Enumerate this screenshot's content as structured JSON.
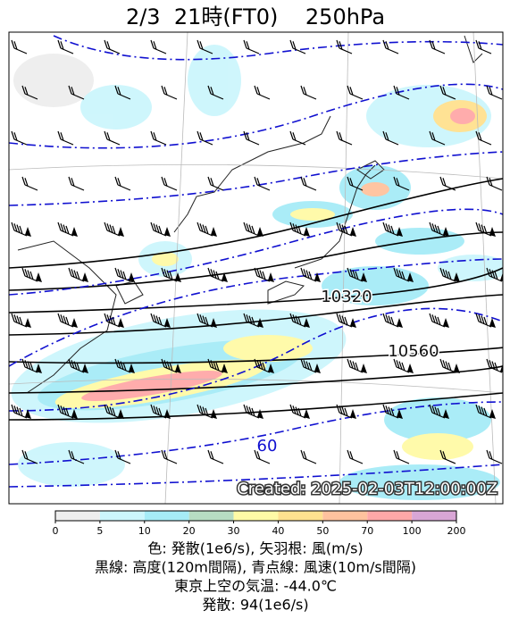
{
  "title": "2/3  21時(FT0)    250hPa",
  "contour_labels": [
    "10320",
    "10560",
    "60"
  ],
  "created": "Created: 2025-02-03T12:00:00Z",
  "colorbar": {
    "ticks": [
      0,
      5,
      10,
      20,
      30,
      40,
      50,
      70,
      100,
      200
    ],
    "colors": [
      "#eeeeee",
      "#ccf6fc",
      "#a6ecf7",
      "#b7dcc3",
      "#fffaa6",
      "#ffe18f",
      "#ffc29e",
      "#ffa8a8",
      "#d9a6d6"
    ]
  },
  "caption": [
    "色: 発散(1e6/s), 矢羽根: 風(m/s)",
    "黒線: 高度(120m間隔), 青点線: 風速(10m/s間隔)",
    "東京上空の気温: -44.0℃",
    "発散: 94(1e6/s)"
  ]
}
